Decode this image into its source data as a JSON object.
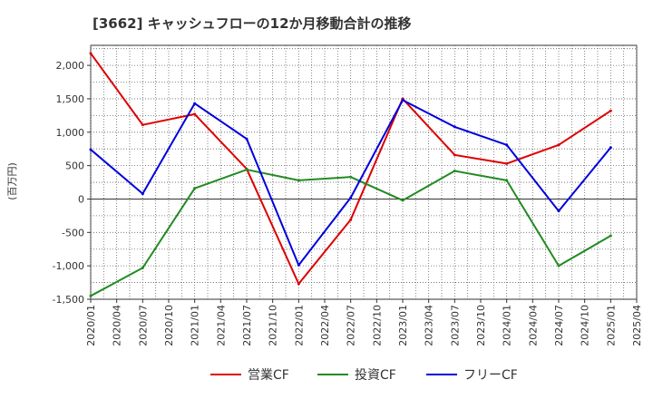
{
  "chart_data": {
    "type": "line",
    "title": "[3662]  キャッシュフローの12か月移動合計の推移",
    "ylabel": "(百万円)",
    "xlabel": "",
    "ylim": [
      -1500,
      2300
    ],
    "yticks": [
      -1500,
      -1000,
      -500,
      0,
      500,
      1000,
      1500,
      2000
    ],
    "ytick_labels": [
      "-1,500",
      "-1,000",
      "-500",
      "0",
      "500",
      "1,000",
      "1,500",
      "2,000"
    ],
    "categories": [
      "2020/01",
      "2020/04",
      "2020/07",
      "2020/10",
      "2021/01",
      "2021/04",
      "2021/07",
      "2021/10",
      "2022/01",
      "2022/04",
      "2022/07",
      "2022/10",
      "2023/01",
      "2023/04",
      "2023/07",
      "2023/10",
      "2024/01",
      "2024/04",
      "2024/07",
      "2024/10",
      "2025/01",
      "2025/04"
    ],
    "grid": true,
    "legend_position": "bottom",
    "series": [
      {
        "name": "営業CF",
        "color": "#dd0000",
        "points": [
          {
            "x": "2020/01",
            "y": 2180
          },
          {
            "x": "2020/07",
            "y": 1110
          },
          {
            "x": "2021/01",
            "y": 1270
          },
          {
            "x": "2021/07",
            "y": 450
          },
          {
            "x": "2022/01",
            "y": -1270
          },
          {
            "x": "2022/07",
            "y": -310
          },
          {
            "x": "2023/01",
            "y": 1500
          },
          {
            "x": "2023/07",
            "y": 660
          },
          {
            "x": "2024/01",
            "y": 530
          },
          {
            "x": "2024/07",
            "y": 810
          },
          {
            "x": "2025/01",
            "y": 1320
          }
        ]
      },
      {
        "name": "投資CF",
        "color": "#228b22",
        "points": [
          {
            "x": "2020/01",
            "y": -1450
          },
          {
            "x": "2020/07",
            "y": -1030
          },
          {
            "x": "2021/01",
            "y": 160
          },
          {
            "x": "2021/07",
            "y": 440
          },
          {
            "x": "2022/01",
            "y": 280
          },
          {
            "x": "2022/07",
            "y": 330
          },
          {
            "x": "2023/01",
            "y": -20
          },
          {
            "x": "2023/07",
            "y": 420
          },
          {
            "x": "2024/01",
            "y": 280
          },
          {
            "x": "2024/07",
            "y": -1000
          },
          {
            "x": "2025/01",
            "y": -550
          }
        ]
      },
      {
        "name": "フリーCF",
        "color": "#0000dd",
        "points": [
          {
            "x": "2020/01",
            "y": 740
          },
          {
            "x": "2020/07",
            "y": 80
          },
          {
            "x": "2021/01",
            "y": 1430
          },
          {
            "x": "2021/07",
            "y": 900
          },
          {
            "x": "2022/01",
            "y": -990
          },
          {
            "x": "2022/07",
            "y": 20
          },
          {
            "x": "2023/01",
            "y": 1480
          },
          {
            "x": "2023/07",
            "y": 1080
          },
          {
            "x": "2024/01",
            "y": 810
          },
          {
            "x": "2024/07",
            "y": -180
          },
          {
            "x": "2025/01",
            "y": 770
          }
        ]
      }
    ]
  }
}
